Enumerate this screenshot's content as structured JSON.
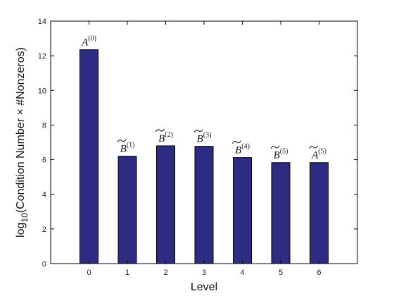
{
  "chart_data": {
    "type": "bar",
    "title": "",
    "xlabel": "Level",
    "ylabel": "log10(Condition Number × #Nonzeros)",
    "ylabel_parts": {
      "base": "log",
      "sub": "10",
      "rest": "(Condition Number × #Nonzeros)"
    },
    "categories": [
      "0",
      "1",
      "2",
      "3",
      "4",
      "5",
      "6"
    ],
    "x": [
      0,
      1,
      2,
      3,
      4,
      5,
      6
    ],
    "values": [
      12.35,
      6.2,
      6.8,
      6.77,
      6.12,
      5.83,
      5.83
    ],
    "bar_labels": [
      {
        "base": "A",
        "sup": "(0)",
        "tilde": false
      },
      {
        "base": "B",
        "sup": "(1)",
        "tilde": true
      },
      {
        "base": "B",
        "sup": "(2)",
        "tilde": true
      },
      {
        "base": "B",
        "sup": "(3)",
        "tilde": true
      },
      {
        "base": "B",
        "sup": "(4)",
        "tilde": true
      },
      {
        "base": "B",
        "sup": "(5)",
        "tilde": true
      },
      {
        "base": "A",
        "sup": "(5)",
        "tilde": true
      }
    ],
    "xlim": [
      -1,
      7
    ],
    "ylim": [
      0,
      14
    ],
    "yticks": [
      0,
      2,
      4,
      6,
      8,
      10,
      12,
      14
    ],
    "xticks": [
      0,
      1,
      2,
      3,
      4,
      5,
      6
    ],
    "grid": false,
    "legend": "none",
    "colors": {
      "bar": "#2e2b82",
      "bar_edge": "#000000",
      "axis": "#000000"
    }
  }
}
